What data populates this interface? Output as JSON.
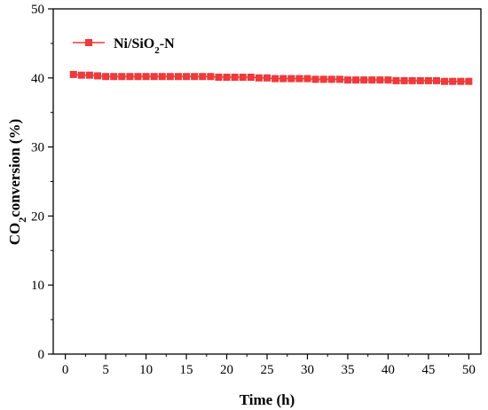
{
  "chart_data": {
    "type": "line",
    "xlabel": "Time (h)",
    "ylabel": {
      "main": "CO",
      "sub": "2",
      "rest": "conversion (%)"
    },
    "xlim": [
      -1.5,
      51.5
    ],
    "ylim": [
      0,
      50
    ],
    "xticks": [
      0,
      5,
      10,
      15,
      20,
      25,
      30,
      35,
      40,
      45,
      50
    ],
    "yticks": [
      0,
      10,
      20,
      30,
      40,
      50
    ],
    "grid": false,
    "legend_position": "top-left",
    "series": [
      {
        "name": {
          "main": "Ni/SiO",
          "sub": "2",
          "rest": "-N"
        },
        "color": "#f0393a",
        "marker": "square",
        "x": [
          1,
          2,
          3,
          4,
          5,
          6,
          7,
          8,
          9,
          10,
          11,
          12,
          13,
          14,
          15,
          16,
          17,
          18,
          19,
          20,
          21,
          22,
          23,
          24,
          25,
          26,
          27,
          28,
          29,
          30,
          31,
          32,
          33,
          34,
          35,
          36,
          37,
          38,
          39,
          40,
          41,
          42,
          43,
          44,
          45,
          46,
          47,
          48,
          49,
          50
        ],
        "values": [
          40.5,
          40.4,
          40.4,
          40.3,
          40.2,
          40.2,
          40.2,
          40.2,
          40.2,
          40.2,
          40.2,
          40.2,
          40.2,
          40.2,
          40.2,
          40.2,
          40.2,
          40.2,
          40.1,
          40.1,
          40.1,
          40.1,
          40.1,
          40.0,
          40.0,
          39.9,
          39.9,
          39.9,
          39.9,
          39.9,
          39.8,
          39.8,
          39.8,
          39.8,
          39.7,
          39.7,
          39.7,
          39.7,
          39.7,
          39.7,
          39.6,
          39.6,
          39.6,
          39.6,
          39.6,
          39.6,
          39.5,
          39.5,
          39.5,
          39.5
        ]
      }
    ]
  }
}
